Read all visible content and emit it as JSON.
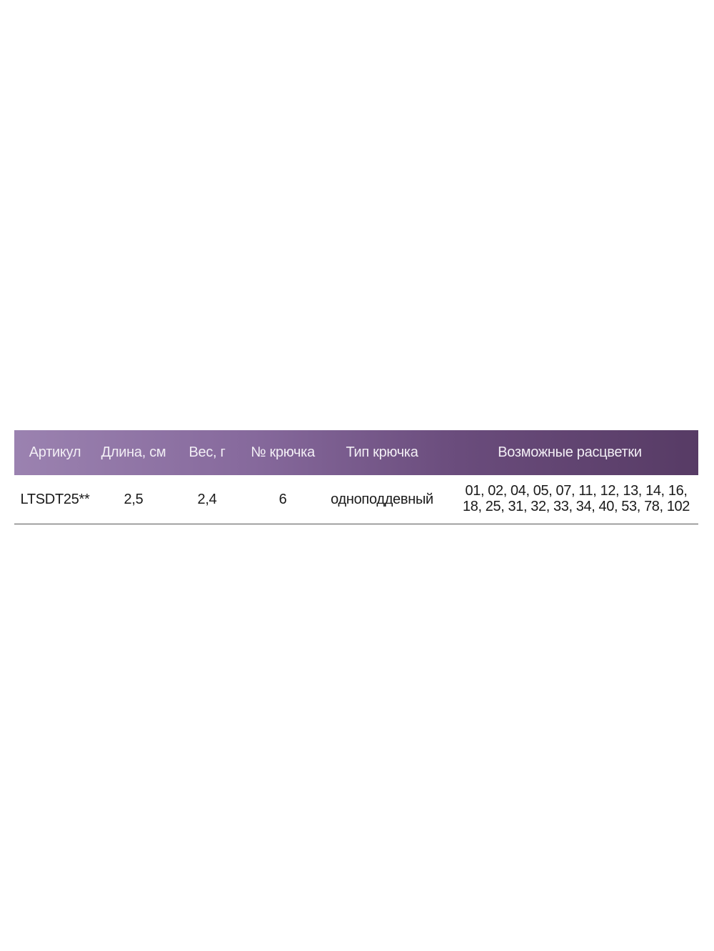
{
  "table": {
    "headers": [
      "Артикул",
      "Длина, см",
      "Вес, г",
      "№ крючка",
      "Тип крючка",
      "Возможные расцветки"
    ],
    "rows": [
      {
        "article": "LTSDT25**",
        "length_cm": "2,5",
        "weight_g": "2,4",
        "hook_number": "6",
        "hook_type": "одноподдевный",
        "colors_line1": "01, 02, 04, 05, 07, 11, 12, 13, 14, 16,",
        "colors_line2": "18, 25, 31, 32, 33, 34, 40, 53, 78, 102"
      }
    ],
    "header_colors": {
      "start": "#9b82b0",
      "end": "#573b65",
      "text": "#f2eef5"
    }
  }
}
